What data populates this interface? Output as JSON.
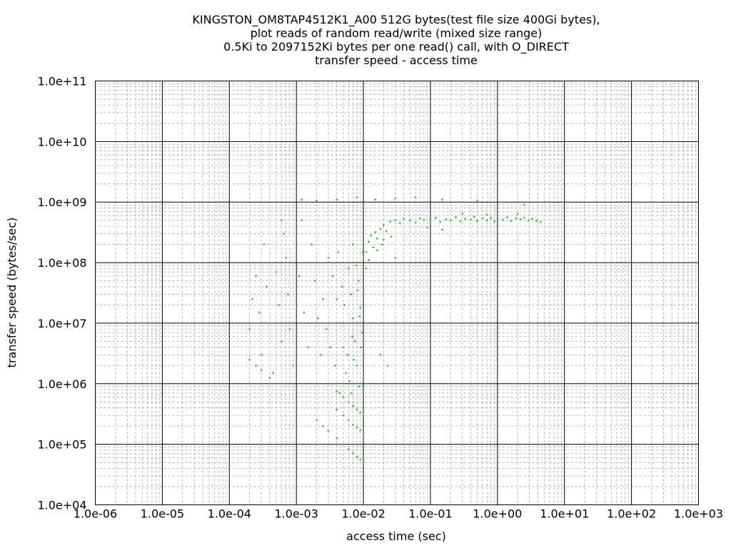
{
  "chart_data": {
    "type": "scatter",
    "title": [
      "KINGSTON_OM8TAP4512K1_A00 512G bytes(test file size 400Gi bytes),",
      "plot reads of random read/write (mixed size range)",
      "0.5Ki to 2097152Ki bytes per one read() call, with O_DIRECT",
      "transfer speed - access time"
    ],
    "xlabel": "access time (sec)",
    "ylabel": "transfer speed (bytes/sec)",
    "xscale": "log",
    "yscale": "log",
    "xlim": [
      1e-06,
      1000.0
    ],
    "ylim": [
      10000.0,
      100000000000.0
    ],
    "grid": true,
    "x_ticks": [
      1e-06,
      1e-05,
      0.0001,
      0.001,
      0.01,
      0.1,
      1.0,
      10.0,
      100.0,
      1000.0
    ],
    "x_tick_labels": [
      "1.0e-06",
      "1.0e-05",
      "1.0e-04",
      "1.0e-03",
      "1.0e-02",
      "1.0e-01",
      "1.0e+00",
      "1.0e+01",
      "1.0e+02",
      "1.0e+03"
    ],
    "y_ticks": [
      10000.0,
      100000.0,
      1000000.0,
      10000000.0,
      100000000.0,
      1000000000.0,
      10000000000.0,
      100000000000.0
    ],
    "y_tick_labels": [
      "1.0e+04",
      "1.0e+05",
      "1.0e+06",
      "1.0e+07",
      "1.0e+08",
      "1.0e+09",
      "1.0e+10",
      "1.0e+11"
    ],
    "series": [
      {
        "name": "reads",
        "color": "#00c000",
        "points": [
          [
            0.02,
            420000000.0
          ],
          [
            0.025,
            480000000.0
          ],
          [
            0.03,
            500000000.0
          ],
          [
            0.035,
            450000000.0
          ],
          [
            0.04,
            530000000.0
          ],
          [
            0.05,
            500000000.0
          ],
          [
            0.06,
            460000000.0
          ],
          [
            0.07,
            540000000.0
          ],
          [
            0.08,
            510000000.0
          ],
          [
            0.1,
            490000000.0
          ],
          [
            0.12,
            550000000.0
          ],
          [
            0.14,
            470000000.0
          ],
          [
            0.17,
            520000000.0
          ],
          [
            0.2,
            500000000.0
          ],
          [
            0.24,
            560000000.0
          ],
          [
            0.28,
            480000000.0
          ],
          [
            0.33,
            530000000.0
          ],
          [
            0.4,
            510000000.0
          ],
          [
            0.45,
            570000000.0
          ],
          [
            0.5,
            490000000.0
          ],
          [
            0.6,
            540000000.0
          ],
          [
            0.7,
            500000000.0
          ],
          [
            0.8,
            550000000.0
          ],
          [
            0.9,
            480000000.0
          ],
          [
            1.0,
            530000000.0
          ],
          [
            1.2,
            510000000.0
          ],
          [
            1.4,
            560000000.0
          ],
          [
            1.6,
            490000000.0
          ],
          [
            1.9,
            540000000.0
          ],
          [
            2.2,
            520000000.0
          ],
          [
            2.5,
            550000000.0
          ],
          [
            2.9,
            500000000.0
          ],
          [
            3.3,
            530000000.0
          ],
          [
            3.8,
            490000000.0
          ],
          [
            4.4,
            470000000.0
          ],
          [
            0.15,
            350000000.0
          ],
          [
            0.3,
            650000000.0
          ],
          [
            0.7,
            620000000.0
          ],
          [
            2.0,
            640000000.0
          ],
          [
            0.09,
            380000000.0
          ],
          [
            0.011,
            150000000.0
          ],
          [
            0.012,
            220000000.0
          ],
          [
            0.013,
            280000000.0
          ],
          [
            0.014,
            180000000.0
          ],
          [
            0.015,
            320000000.0
          ],
          [
            0.016,
            250000000.0
          ],
          [
            0.018,
            360000000.0
          ],
          [
            0.019,
            200000000.0
          ],
          [
            0.022,
            330000000.0
          ],
          [
            0.026,
            270000000.0
          ],
          [
            0.011,
            80000000.0
          ],
          [
            0.012,
            110000000.0
          ],
          [
            0.03,
            120000000.0
          ],
          [
            0.016,
            160000000.0
          ],
          [
            0.02,
            240000000.0
          ],
          [
            0.003,
            120000000.0
          ],
          [
            0.0035,
            60000000.0
          ],
          [
            0.004,
            25000000.0
          ],
          [
            0.0045,
            10000000.0
          ],
          [
            0.005,
            4000000.0
          ],
          [
            0.0055,
            1500000.0
          ],
          [
            0.006,
            80000000.0
          ],
          [
            0.0065,
            30000000.0
          ],
          [
            0.007,
            12000000.0
          ],
          [
            0.0075,
            5000000.0
          ],
          [
            0.008,
            2000000.0
          ],
          [
            0.0085,
            50000000.0
          ],
          [
            0.009,
            18000000.0
          ],
          [
            0.0095,
            7000000.0
          ],
          [
            0.0098,
            150000000.0
          ],
          [
            0.0032,
            4000000.0
          ],
          [
            0.0038,
            2000000.0
          ],
          [
            0.0042,
            150000000.0
          ],
          [
            0.0048,
            40000000.0
          ],
          [
            0.0052,
            20000000.0
          ],
          [
            0.0058,
            3000000.0
          ],
          [
            0.0062,
            1100000.0
          ],
          [
            0.0068,
            6000000.0
          ],
          [
            0.0072,
            2500000.0
          ],
          [
            0.0078,
            90000000.0
          ],
          [
            0.0082,
            35000000.0
          ],
          [
            0.0088,
            13000000.0
          ],
          [
            0.0092,
            4000000.0
          ],
          [
            0.0028,
            8000000.0
          ],
          [
            0.0025,
            25000000.0
          ],
          [
            0.0096,
            1000000.0
          ],
          [
            0.0044,
            700000.0
          ],
          [
            0.0066,
            700000.0
          ],
          [
            0.0086,
            900000.0
          ],
          [
            0.007,
            200000000.0
          ],
          [
            0.0002,
            8000000.0
          ],
          [
            0.00022,
            25000000.0
          ],
          [
            0.00025,
            60000000.0
          ],
          [
            0.00028,
            15000000.0
          ],
          [
            0.0003,
            3000000.0
          ],
          [
            0.00033,
            200000000.0
          ],
          [
            0.00036,
            40000000.0
          ],
          [
            0.0004,
            10000000.0
          ],
          [
            0.00045,
            1500000.0
          ],
          [
            0.0005,
            70000000.0
          ],
          [
            0.00055,
            20000000.0
          ],
          [
            0.0006,
            5000000.0
          ],
          [
            0.00065,
            300000000.0
          ],
          [
            0.0007,
            120000000.0
          ],
          [
            0.00075,
            30000000.0
          ],
          [
            0.0008,
            8000000.0
          ],
          [
            0.0009,
            2000000.0
          ],
          [
            0.0011,
            60000000.0
          ],
          [
            0.0013,
            15000000.0
          ],
          [
            0.0015,
            4000000.0
          ],
          [
            0.0017,
            200000000.0
          ],
          [
            0.0019,
            50000000.0
          ],
          [
            0.0021,
            12000000.0
          ],
          [
            0.0023,
            3000000.0
          ],
          [
            0.0012,
            500000000.0
          ],
          [
            0.0006,
            500000000.0
          ],
          [
            0.018,
            3000000.0
          ],
          [
            0.023,
            2000000.0
          ],
          [
            0.03,
            10000000.0
          ],
          [
            0.015,
            100000.0
          ],
          [
            0.002,
            250000.0
          ],
          [
            0.0025,
            200000.0
          ],
          [
            0.003,
            167000.0
          ],
          [
            0.004,
            125000.0
          ],
          [
            0.005,
            100000.0
          ],
          [
            0.006,
            83000.0
          ],
          [
            0.007,
            71000.0
          ],
          [
            0.008,
            62000.0
          ],
          [
            0.009,
            56000.0
          ],
          [
            0.01,
            50000.0
          ],
          [
            0.004,
            375000.0
          ],
          [
            0.005,
            300000.0
          ],
          [
            0.006,
            250000.0
          ],
          [
            0.007,
            210000.0
          ],
          [
            0.008,
            190000.0
          ],
          [
            0.009,
            170000.0
          ],
          [
            0.01,
            150000.0
          ],
          [
            0.004,
            750000.0
          ],
          [
            0.005,
            600000.0
          ],
          [
            0.006,
            500000.0
          ],
          [
            0.007,
            430000.0
          ],
          [
            0.008,
            375000.0
          ],
          [
            0.009,
            330000.0
          ],
          [
            0.01,
            300000.0
          ],
          [
            0.0002,
            2500000.0
          ],
          [
            0.00025,
            2000000.0
          ],
          [
            0.0003,
            1670000.0
          ],
          [
            0.0004,
            1250000.0
          ],
          [
            0.0012,
            1100000000.0
          ],
          [
            0.002,
            1050000000.0
          ],
          [
            0.004,
            1100000000.0
          ],
          [
            0.008,
            1200000000.0
          ],
          [
            0.015,
            1100000000.0
          ],
          [
            0.03,
            1150000000.0
          ],
          [
            0.06,
            1200000000.0
          ],
          [
            0.15,
            1100000000.0
          ],
          [
            0.5,
            1050000000.0
          ],
          [
            1.2,
            1000000000.0
          ],
          [
            2.5,
            900000000.0
          ]
        ]
      }
    ]
  }
}
